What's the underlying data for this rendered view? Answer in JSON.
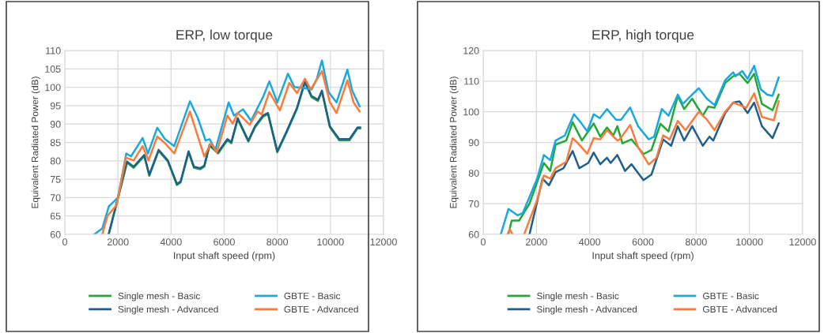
{
  "chart_data": [
    {
      "type": "line",
      "title": "ERP, low torque",
      "xlabel": "Input shaft speed (rpm)",
      "ylabel": "Equivalent Radiated Power (dB)",
      "xlim": [
        0,
        12000
      ],
      "xticks": [
        0,
        2000,
        4000,
        6000,
        8000,
        10000,
        12000
      ],
      "ylim": [
        60,
        110
      ],
      "yticks": [
        60,
        65,
        70,
        75,
        80,
        85,
        90,
        95,
        100,
        105,
        110
      ],
      "grid": true,
      "legend": "bottom",
      "marker": "none",
      "line_style": "solid",
      "series": [
        {
          "name": "Single mesh - Basic",
          "color": "#22a833",
          "x": [
            1650,
            2000,
            2340,
            2590,
            2990,
            3180,
            3530,
            3880,
            4220,
            4360,
            4660,
            4860,
            5100,
            5250,
            5450,
            5770,
            6120,
            6270,
            6510,
            6910,
            7160,
            7460,
            7650,
            8000,
            8350,
            8740,
            9040,
            9290,
            9530,
            9680,
            9980,
            10330,
            10720,
            11020,
            11120
          ],
          "values": [
            60,
            69.7,
            79.5,
            78.1,
            81.3,
            75.9,
            82.7,
            79.8,
            73.4,
            74.1,
            82.3,
            78.1,
            77.7,
            78.4,
            84.1,
            82,
            85.6,
            84.8,
            91.3,
            85.2,
            89.1,
            92,
            92.7,
            82.3,
            87.7,
            94.1,
            101.3,
            97.3,
            96.3,
            98.8,
            89.1,
            85.6,
            85.6,
            88.8,
            88.8
          ]
        },
        {
          "name": "Single mesh - Advanced",
          "color": "#1f5f8b",
          "x": [
            1650,
            2000,
            2340,
            2590,
            2990,
            3180,
            3530,
            3880,
            4220,
            4360,
            4660,
            4860,
            5100,
            5250,
            5450,
            5770,
            6120,
            6270,
            6510,
            6910,
            7160,
            7460,
            7650,
            8000,
            8350,
            8740,
            9040,
            9290,
            9530,
            9680,
            9980,
            10330,
            10720,
            11020,
            11120
          ],
          "values": [
            60,
            70,
            79.8,
            78.4,
            81.6,
            76.2,
            83,
            80.1,
            73.7,
            74.4,
            82.6,
            78.4,
            78,
            78.7,
            84.4,
            82.3,
            85.9,
            85.1,
            91.6,
            85.5,
            89.4,
            92.3,
            93,
            82.6,
            88,
            94.4,
            101.6,
            97.6,
            96.6,
            99.1,
            89.4,
            85.9,
            85.9,
            89.1,
            89.1
          ]
        },
        {
          "name": "GBTE - Basic",
          "color": "#19a9e0",
          "x": [
            1110,
            1410,
            1655,
            2000,
            2315,
            2490,
            2930,
            3130,
            3480,
            3770,
            4120,
            4710,
            5010,
            5300,
            5450,
            5670,
            6170,
            6370,
            6710,
            7010,
            7460,
            7700,
            8000,
            8400,
            8640,
            8990,
            9290,
            9490,
            9680,
            9930,
            10230,
            10640,
            10820,
            11100
          ],
          "values": [
            60,
            61.6,
            67.6,
            70,
            82,
            81.2,
            86.2,
            82,
            89,
            85.9,
            84,
            96.2,
            91.6,
            85.5,
            85.9,
            83,
            95.9,
            92.3,
            94,
            90.9,
            97.3,
            101.6,
            95.9,
            103.7,
            100.1,
            99.8,
            99.4,
            102.3,
            107.3,
            98.7,
            95.9,
            104.8,
            99.1,
            94.8
          ]
        },
        {
          "name": "GBTE - Advanced",
          "color": "#f97b3d",
          "x": [
            1410,
            1610,
            1950,
            2300,
            2590,
            2930,
            3150,
            3480,
            3770,
            4120,
            4710,
            5010,
            5250,
            5500,
            5720,
            6120,
            6320,
            6510,
            6960,
            7260,
            7410,
            7700,
            8100,
            8450,
            8740,
            9040,
            9260,
            9680,
            9980,
            10230,
            10640,
            10870,
            11100
          ],
          "values": [
            60,
            65.1,
            68,
            80.9,
            80.1,
            84,
            80.1,
            86.6,
            84.8,
            82,
            93.4,
            86.6,
            81.2,
            84.8,
            82.3,
            92.3,
            90.1,
            93,
            89.8,
            93.4,
            92.6,
            98.7,
            93.7,
            101.2,
            98.4,
            102.3,
            99.4,
            104.4,
            95.9,
            93,
            101.9,
            95.9,
            93.4
          ]
        }
      ]
    },
    {
      "type": "line",
      "title": "ERP, high torque",
      "xlabel": "Input shaft speed (rpm)",
      "ylabel": "Equivalent Radiated Power (dB)",
      "xlim": [
        0,
        12000
      ],
      "xticks": [
        0,
        2000,
        4000,
        6000,
        8000,
        10000,
        12000
      ],
      "ylim": [
        60,
        120
      ],
      "yticks": [
        60,
        70,
        80,
        90,
        100,
        110,
        120
      ],
      "grid": true,
      "legend": "bottom",
      "marker": "none",
      "line_style": "solid",
      "series": [
        {
          "name": "Single mesh - Basic",
          "color": "#22a833",
          "x": [
            950,
            1070,
            1350,
            1740,
            2280,
            2520,
            2720,
            3120,
            3360,
            3710,
            4150,
            4400,
            4650,
            4890,
            5040,
            5230,
            5570,
            5820,
            6020,
            6320,
            6660,
            6960,
            7310,
            7550,
            7850,
            8250,
            8450,
            8690,
            9090,
            9390,
            9630,
            9930,
            10180,
            10470,
            10870,
            11100
          ],
          "values": [
            60,
            64.5,
            64.5,
            70,
            83.3,
            80.7,
            89.3,
            90.6,
            96.6,
            90.6,
            96.2,
            91.9,
            94.9,
            92.3,
            95.3,
            89.7,
            91,
            88.4,
            86.2,
            87.5,
            96.1,
            93.6,
            105.2,
            100.9,
            104.3,
            98.7,
            101.7,
            101.3,
            109.4,
            111.6,
            112.4,
            109.4,
            112.4,
            102.6,
            100.5,
            105.6
          ]
        },
        {
          "name": "Single mesh - Advanced",
          "color": "#1f5f8b",
          "x": [
            1740,
            2230,
            2470,
            2720,
            3020,
            3360,
            3610,
            3950,
            4150,
            4400,
            4650,
            4790,
            5040,
            5330,
            5570,
            6020,
            6320,
            6760,
            7060,
            7310,
            7550,
            7850,
            8250,
            8500,
            8640,
            9090,
            9390,
            9630,
            9930,
            10180,
            10470,
            10870,
            11100
          ],
          "values": [
            60,
            78.2,
            76,
            80.3,
            81.6,
            87.2,
            81.6,
            83.3,
            86.7,
            82.9,
            85,
            83.3,
            85.9,
            80.7,
            82.9,
            77.7,
            79.5,
            91,
            88.9,
            95.3,
            90.6,
            95.3,
            88.9,
            91.9,
            90.6,
            99.6,
            103,
            103.4,
            99.6,
            103,
            95.3,
            91.4,
            96.2
          ]
        },
        {
          "name": "GBTE - Basic",
          "color": "#19a9e0",
          "x": [
            660,
            950,
            1300,
            1490,
            2030,
            2280,
            2520,
            2720,
            3070,
            3410,
            3660,
            3910,
            4150,
            4380,
            4650,
            4990,
            5180,
            5520,
            5820,
            6220,
            6420,
            6710,
            6960,
            7310,
            7500,
            7850,
            8100,
            8400,
            8690,
            9090,
            9390,
            9480,
            9730,
            9930,
            10180,
            10430,
            10670,
            10870,
            11100
          ],
          "values": [
            60,
            68.3,
            66.2,
            67,
            78.2,
            85.9,
            84.2,
            90.6,
            92.3,
            99.2,
            96.6,
            93.6,
            99.2,
            97.9,
            100.9,
            97.4,
            97.4,
            101.4,
            95.3,
            91,
            91.9,
            100.9,
            98.7,
            105.6,
            102.6,
            105.6,
            107.7,
            104.3,
            102.2,
            110.3,
            112.9,
            111.6,
            113.3,
            110.8,
            115,
            107.3,
            105.6,
            105.2,
            111.2
          ]
        },
        {
          "name": "GBTE - Advanced",
          "color": "#f97b3d",
          "x": [
            910,
            1000,
            1100,
            1300,
            1540,
            2030,
            2280,
            2520,
            2720,
            3120,
            3360,
            3560,
            3910,
            4150,
            4400,
            4650,
            5040,
            5130,
            5520,
            5820,
            6220,
            6510,
            6760,
            7010,
            7310,
            7600,
            8100,
            8400,
            8690,
            9090,
            9390,
            9630,
            9880,
            10180,
            10470,
            10920,
            11100
          ],
          "values": [
            60,
            61.7,
            60,
            null,
            60,
            71.3,
            79.2,
            78.2,
            81.6,
            83.7,
            91.4,
            89.7,
            86.3,
            91.4,
            91,
            94,
            90.6,
            91,
            95.7,
            88.4,
            82.8,
            85,
            92.3,
            91,
            97,
            94,
            100,
            97.5,
            94,
            100,
            103,
            102.2,
            101.3,
            106,
            98.3,
            97.2,
            103.5
          ]
        }
      ]
    }
  ]
}
